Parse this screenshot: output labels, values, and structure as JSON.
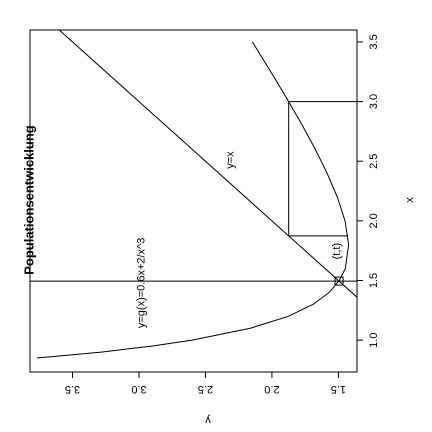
{
  "chart_data": {
    "type": "line",
    "title": "Populationsentwicklung",
    "xlabel": "x",
    "ylabel": "y",
    "xlim": [
      0.733,
      3.6
    ],
    "ylim": [
      1.36,
      3.82
    ],
    "xticks": [
      {
        "value": 1,
        "label": "1.0"
      },
      {
        "value": 1.5,
        "label": "1.5"
      },
      {
        "value": 2,
        "label": "2.0"
      },
      {
        "value": 2.5,
        "label": "2.5"
      },
      {
        "value": 3,
        "label": "3.0"
      },
      {
        "value": 3.5,
        "label": "3.5"
      }
    ],
    "yticks": [
      {
        "value": 1.5,
        "label": "1.5"
      },
      {
        "value": 2,
        "label": "2.0"
      },
      {
        "value": 2.5,
        "label": "2.5"
      },
      {
        "value": 3,
        "label": "3.0"
      },
      {
        "value": 3.5,
        "label": "3.5"
      }
    ],
    "color": "#000000",
    "series": [
      {
        "x": [
          0.85,
          0.9,
          0.95,
          1.0,
          1.1,
          1.2,
          1.3,
          1.4,
          1.5,
          1.6,
          1.8,
          2.0,
          2.2,
          2.4,
          2.6,
          2.8,
          3.0,
          3.2,
          3.5
        ],
        "values": [
          3.767,
          3.284,
          2.903,
          2.6,
          2.163,
          1.877,
          1.69,
          1.569,
          1.493,
          1.448,
          1.423,
          1.45,
          1.508,
          1.585,
          1.674,
          1.771,
          1.874,
          1.981,
          2.147
        ]
      },
      {
        "x": [
          1.36,
          3.6
        ],
        "values": [
          1.36,
          3.6
        ]
      },
      {
        "x": [
          3.0,
          3.0,
          1.874,
          1.874
        ],
        "values": [
          1.36,
          1.874,
          1.874,
          1.428
        ]
      },
      {
        "x": [
          1.495,
          1.495
        ],
        "values": [
          1.36,
          3.82
        ]
      }
    ],
    "fixpoint": {
      "x": 1.495,
      "y": 1.495,
      "label": "(t,t)"
    },
    "annotations": [
      "y=x",
      "y=g(x)=0.6x+2/x^3"
    ]
  }
}
